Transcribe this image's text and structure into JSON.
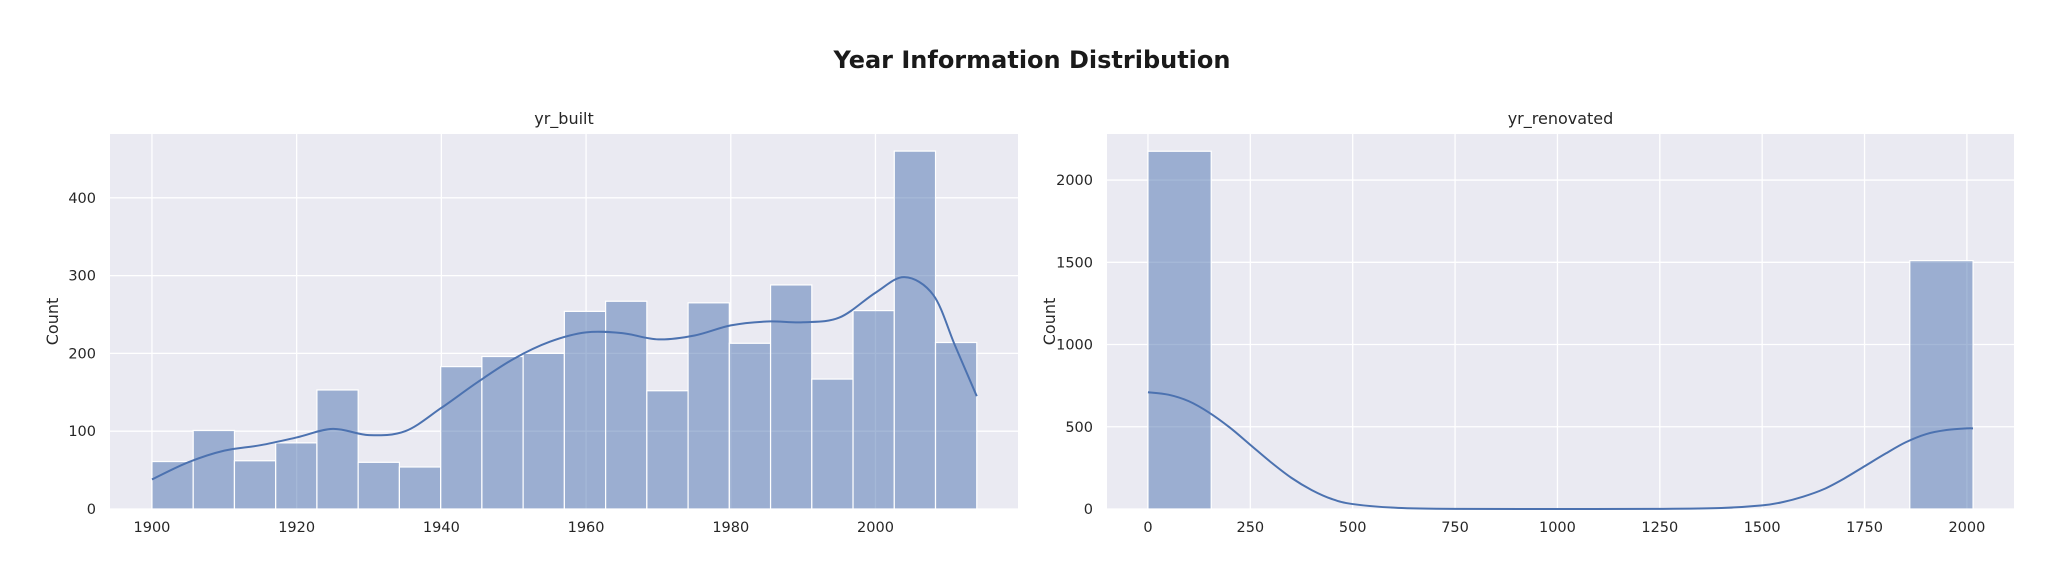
{
  "figure": {
    "title": "Year Information Distribution"
  },
  "colors": {
    "panel_bg": "#eaeaf2",
    "grid": "#ffffff",
    "bar_fill": "#4c72b0",
    "bar_alpha": 0.5,
    "kde_line": "#4c72b0"
  },
  "chart_data": [
    {
      "type": "bar",
      "title": "yr_built",
      "xlabel": "",
      "ylabel": "Count",
      "xlim": [
        1894.2,
        2019.7
      ],
      "ylim": [
        0,
        482
      ],
      "xticks": [
        1900,
        1920,
        1940,
        1960,
        1980,
        2000
      ],
      "yticks": [
        0,
        100,
        200,
        300,
        400
      ],
      "grid": true,
      "bin_edges": [
        1900,
        1905.7,
        1911.4,
        1917.1,
        1922.8,
        1928.5,
        1934.2,
        1939.9,
        1945.6,
        1951.3,
        1957.0,
        1962.7,
        1968.4,
        1974.1,
        1979.8,
        1985.5,
        1991.2,
        1996.9,
        2002.6,
        2008.3,
        2014.0
      ],
      "values": [
        61,
        101,
        62,
        85,
        153,
        60,
        54,
        183,
        196,
        200,
        254,
        267,
        152,
        265,
        213,
        288,
        167,
        255,
        460,
        214
      ],
      "kde": {
        "x": [
          1900,
          1905,
          1910,
          1915,
          1920,
          1925,
          1930,
          1935,
          1940,
          1945,
          1950,
          1955,
          1960,
          1965,
          1970,
          1975,
          1980,
          1985,
          1990,
          1995,
          2000,
          2004,
          2008,
          2011,
          2014
        ],
        "y": [
          38,
          60,
          75,
          82,
          92,
          103,
          95,
          100,
          130,
          163,
          193,
          215,
          227,
          226,
          218,
          223,
          236,
          241,
          240,
          246,
          278,
          298,
          275,
          210,
          145
        ]
      }
    },
    {
      "type": "bar",
      "title": "yr_renovated",
      "xlabel": "",
      "ylabel": "Count",
      "xlim": [
        -100,
        2115
      ],
      "ylim": [
        0,
        2280
      ],
      "xticks": [
        0,
        250,
        500,
        750,
        1000,
        1250,
        1500,
        1750,
        2000
      ],
      "yticks": [
        0,
        500,
        1000,
        1500,
        2000
      ],
      "grid": true,
      "bin_edges": [
        0,
        154.5,
        1860.5,
        2015
      ],
      "values": [
        2175,
        0,
        1510
      ],
      "kde": {
        "x": [
          0,
          50,
          100,
          150,
          200,
          250,
          300,
          350,
          400,
          450,
          500,
          600,
          750,
          1000,
          1250,
          1400,
          1500,
          1550,
          1600,
          1650,
          1700,
          1750,
          1800,
          1850,
          1900,
          1950,
          2000,
          2015
        ],
        "y": [
          710,
          695,
          655,
          585,
          495,
          390,
          285,
          190,
          115,
          60,
          30,
          8,
          1,
          0,
          1,
          6,
          22,
          42,
          75,
          120,
          185,
          260,
          335,
          405,
          455,
          480,
          490,
          490
        ]
      }
    }
  ]
}
